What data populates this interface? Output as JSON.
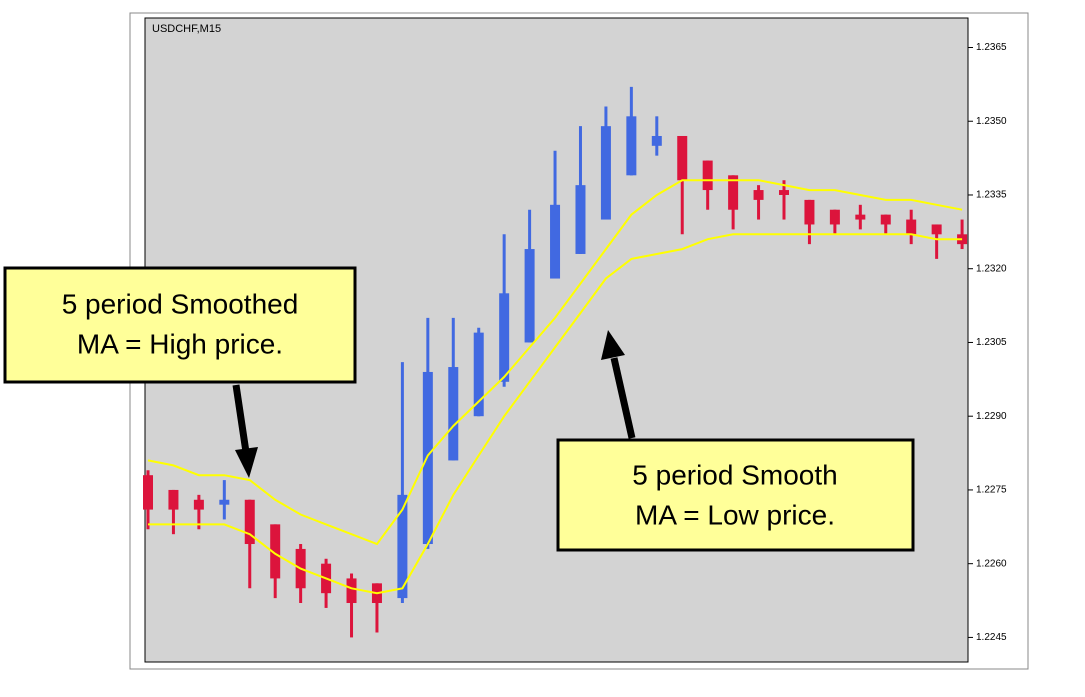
{
  "chart_data": {
    "type": "candlestick",
    "title": "USDCHF,M15",
    "open": [
      1.2278,
      1.2275,
      1.2273,
      1.2272,
      1.2273,
      1.2268,
      1.2263,
      1.226,
      1.2257,
      1.2256,
      1.2253,
      1.2264,
      1.2281,
      1.229,
      1.2297,
      1.2305,
      1.2318,
      1.2323,
      1.233,
      1.2339,
      1.2345,
      1.2347,
      1.2342,
      1.2339,
      1.2336,
      1.2336,
      1.2334,
      1.2332,
      1.2331,
      1.2331,
      1.233,
      1.2329,
      1.2327
    ],
    "high": [
      1.2279,
      1.2275,
      1.2274,
      1.2277,
      1.2273,
      1.2268,
      1.2264,
      1.2261,
      1.2258,
      1.2256,
      1.2301,
      1.231,
      1.231,
      1.2308,
      1.2327,
      1.2332,
      1.2344,
      1.2349,
      1.2353,
      1.2357,
      1.2351,
      1.2347,
      1.2342,
      1.2339,
      1.2337,
      1.2338,
      1.2334,
      1.2332,
      1.2333,
      1.2331,
      1.2332,
      1.2329,
      1.233
    ],
    "low": [
      1.2267,
      1.2266,
      1.2267,
      1.2269,
      1.2255,
      1.2253,
      1.2252,
      1.2251,
      1.2245,
      1.2246,
      1.2252,
      1.2263,
      1.2281,
      1.229,
      1.2296,
      1.2305,
      1.2318,
      1.2323,
      1.233,
      1.2339,
      1.2343,
      1.2327,
      1.2332,
      1.2328,
      1.233,
      1.233,
      1.2325,
      1.2327,
      1.2328,
      1.2327,
      1.2325,
      1.2322,
      1.2324
    ],
    "close": [
      1.2271,
      1.2271,
      1.2271,
      1.2273,
      1.2264,
      1.2257,
      1.2255,
      1.2254,
      1.2252,
      1.2252,
      1.2274,
      1.2299,
      1.23,
      1.2307,
      1.2315,
      1.2324,
      1.2333,
      1.2337,
      1.2349,
      1.2351,
      1.2347,
      1.2338,
      1.2336,
      1.2332,
      1.2334,
      1.2335,
      1.2329,
      1.2329,
      1.233,
      1.2329,
      1.2327,
      1.2327,
      1.2325
    ],
    "up_color": "#4169e1",
    "down_color": "#dc143c",
    "series": [
      {
        "color": "#ffff00",
        "values": [
          1.2281,
          1.228,
          1.2278,
          1.2278,
          1.2277,
          1.2273,
          1.227,
          1.2268,
          1.2266,
          1.2264,
          1.2271,
          1.2282,
          1.2288,
          1.2293,
          1.2298,
          1.2304,
          1.231,
          1.2317,
          1.2324,
          1.2331,
          1.2335,
          1.2338,
          1.2338,
          1.2338,
          1.2338,
          1.2337,
          1.2336,
          1.2336,
          1.2335,
          1.2334,
          1.2334,
          1.2333,
          1.2332
        ]
      },
      {
        "color": "#ffff00",
        "values": [
          1.2268,
          1.2268,
          1.2268,
          1.2268,
          1.2266,
          1.2262,
          1.2259,
          1.2257,
          1.2255,
          1.2254,
          1.2255,
          1.2264,
          1.2274,
          1.2282,
          1.229,
          1.2297,
          1.2304,
          1.2311,
          1.2318,
          1.2322,
          1.2323,
          1.2324,
          1.2326,
          1.2327,
          1.2327,
          1.2327,
          1.2327,
          1.2327,
          1.2327,
          1.2327,
          1.2327,
          1.2326,
          1.2326
        ]
      }
    ],
    "ylim": [
      1.224,
      1.2371
    ],
    "yticks": [
      1.2245,
      {
        "value": 1.226,
        "label": "1.2260"
      },
      1.2275,
      {
        "value": 1.229,
        "label": "1.2290"
      },
      1.2305,
      {
        "value": 1.232,
        "label": "1.2320"
      },
      1.2335,
      {
        "value": 1.235,
        "label": "1.2350"
      },
      1.2365
    ],
    "annotations": [
      {
        "lines": [
          "5 period Smoothed",
          "MA = High price."
        ]
      },
      {
        "lines": [
          "5 period Smooth",
          "MA = Low price."
        ]
      }
    ]
  }
}
